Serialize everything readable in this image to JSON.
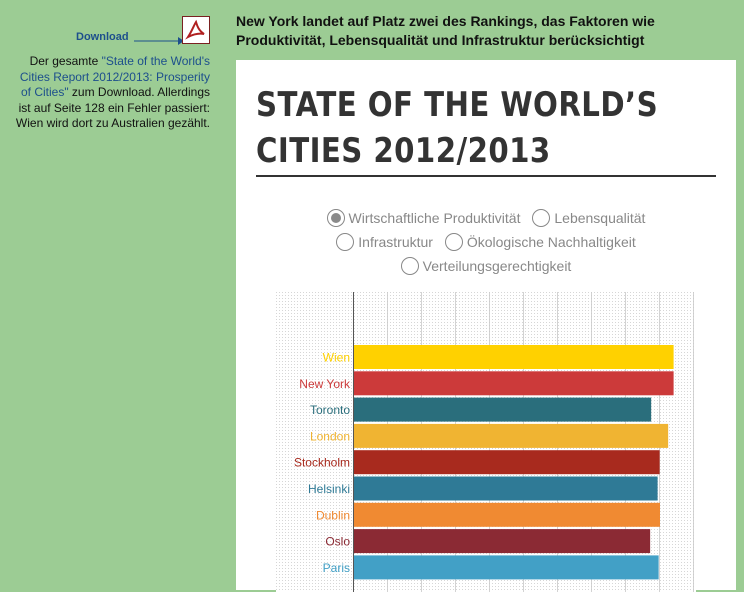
{
  "sidebar": {
    "download_label": "Download",
    "desc_prefix": "Der gesamte ",
    "report_link": "\"State of the World's Cities Report 2012/2013: Prosperity of Cities\"",
    "desc_suffix": " zum Download. Allerdings ist auf Seite 128 ein Fehler passiert: Wien wird dort zu Australien gezählt."
  },
  "headline": "New York landet auf Platz zwei des Rankings, das Faktoren wie Produktivität, Lebensqualität und Infrastruktur berücksichtigt",
  "panel": {
    "title_line1": "STATE OF THE WORLD’S",
    "title_line2": "CITIES 2012/2013"
  },
  "radio_options": [
    {
      "label": "Wirtschaftliche Produktivität",
      "selected": true
    },
    {
      "label": "Lebensqualität",
      "selected": false
    },
    {
      "label": "Infrastruktur",
      "selected": false
    },
    {
      "label": "Ökologische Nachhaltigkeit",
      "selected": false
    },
    {
      "label": "Verteilungsgerechtigkeit",
      "selected": false
    }
  ],
  "chart_data": {
    "type": "bar",
    "orientation": "horizontal",
    "title": "",
    "xlabel": "",
    "ylabel": "",
    "xlim": [
      0,
      1
    ],
    "grid": true,
    "categories": [
      "Wien",
      "New York",
      "Toronto",
      "London",
      "Stockholm",
      "Helsinki",
      "Dublin",
      "Oslo",
      "Paris"
    ],
    "values": [
      0.94,
      0.94,
      0.874,
      0.924,
      0.899,
      0.893,
      0.9,
      0.871,
      0.896
    ],
    "colors": [
      "#ffd100",
      "#cc3a3a",
      "#2a6e7c",
      "#f0b432",
      "#a82a1e",
      "#2f7a96",
      "#f08a32",
      "#8b2a34",
      "#42a0c6"
    ]
  }
}
